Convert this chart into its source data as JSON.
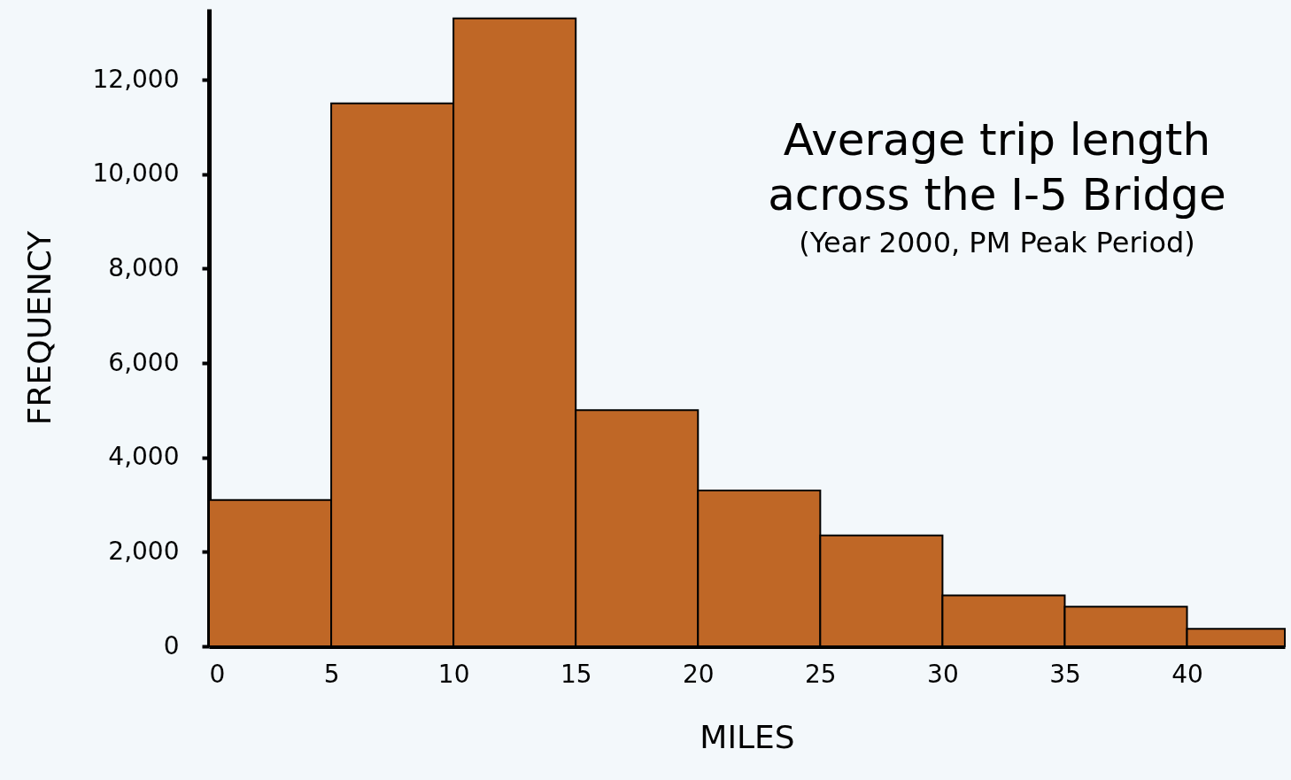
{
  "chart_data": {
    "type": "histogram",
    "title": "Average trip length across the I-5 Bridge",
    "subtitle": "(Year 2000, PM Peak Period)",
    "xlabel": "MILES",
    "ylabel": "FREQUENCY",
    "bins": [
      0,
      5,
      10,
      15,
      20,
      25,
      30,
      35,
      40,
      44
    ],
    "values": [
      3100,
      11500,
      13300,
      5000,
      3300,
      2350,
      1080,
      840,
      370
    ],
    "color": "#bf6726",
    "xlim": [
      0,
      44
    ],
    "xticks": [
      0,
      5,
      10,
      15,
      20,
      25,
      30,
      35,
      40
    ],
    "ylim": [
      0,
      13500
    ],
    "yticks": [
      0,
      {
        "value": 2000,
        "label": "2,000"
      },
      {
        "value": 4000,
        "label": "4,000"
      },
      {
        "value": 6000,
        "label": "6,000"
      },
      {
        "value": 8000,
        "label": "8,000"
      },
      {
        "value": 10000,
        "label": "10,000"
      },
      {
        "value": 12000,
        "label": "12,000"
      }
    ],
    "grid": false
  }
}
